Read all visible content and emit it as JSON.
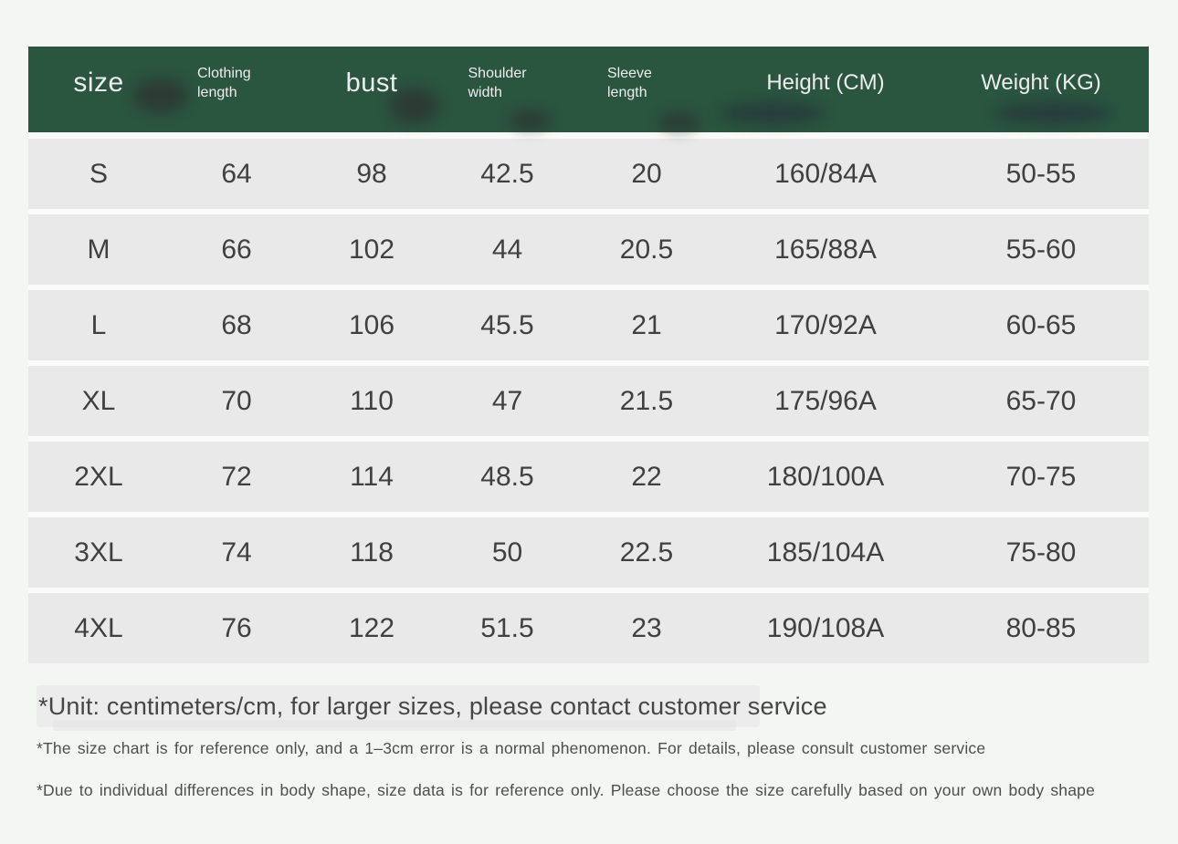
{
  "colors": {
    "page_bg": "#f4f6f4",
    "header_bg": "#2a553f",
    "row_bg": "#e9e9e9",
    "header_text": "#ededed",
    "cell_text": "#404040"
  },
  "table": {
    "columns": [
      {
        "label": "size"
      },
      {
        "label": "Clothing length"
      },
      {
        "label": "bust"
      },
      {
        "label": "Shoulder width"
      },
      {
        "label": "Sleeve length"
      },
      {
        "label": "Height (CM)"
      },
      {
        "label": "Weight (KG)"
      }
    ],
    "rows": [
      [
        "S",
        "64",
        "98",
        "42.5",
        "20",
        "160/84A",
        "50-55"
      ],
      [
        "M",
        "66",
        "102",
        "44",
        "20.5",
        "165/88A",
        "55-60"
      ],
      [
        "L",
        "68",
        "106",
        "45.5",
        "21",
        "170/92A",
        "60-65"
      ],
      [
        "XL",
        "70",
        "110",
        "47",
        "21.5",
        "175/96A",
        "65-70"
      ],
      [
        "2XL",
        "72",
        "114",
        "48.5",
        "22",
        "180/100A",
        "70-75"
      ],
      [
        "3XL",
        "74",
        "118",
        "50",
        "22.5",
        "185/104A",
        "75-80"
      ],
      [
        "4XL",
        "76",
        "122",
        "51.5",
        "23",
        "190/108A",
        "80-85"
      ]
    ]
  },
  "notes": {
    "unit": "*Unit: centimeters/cm, for larger sizes, please contact customer service",
    "reference": "*The size chart is for reference only, and a 1–3cm error is a normal phenomenon. For details, please consult customer service",
    "body_shape": "*Due to individual differences in body shape, size data is for reference only. Please choose the size carefully based on your own body shape"
  }
}
